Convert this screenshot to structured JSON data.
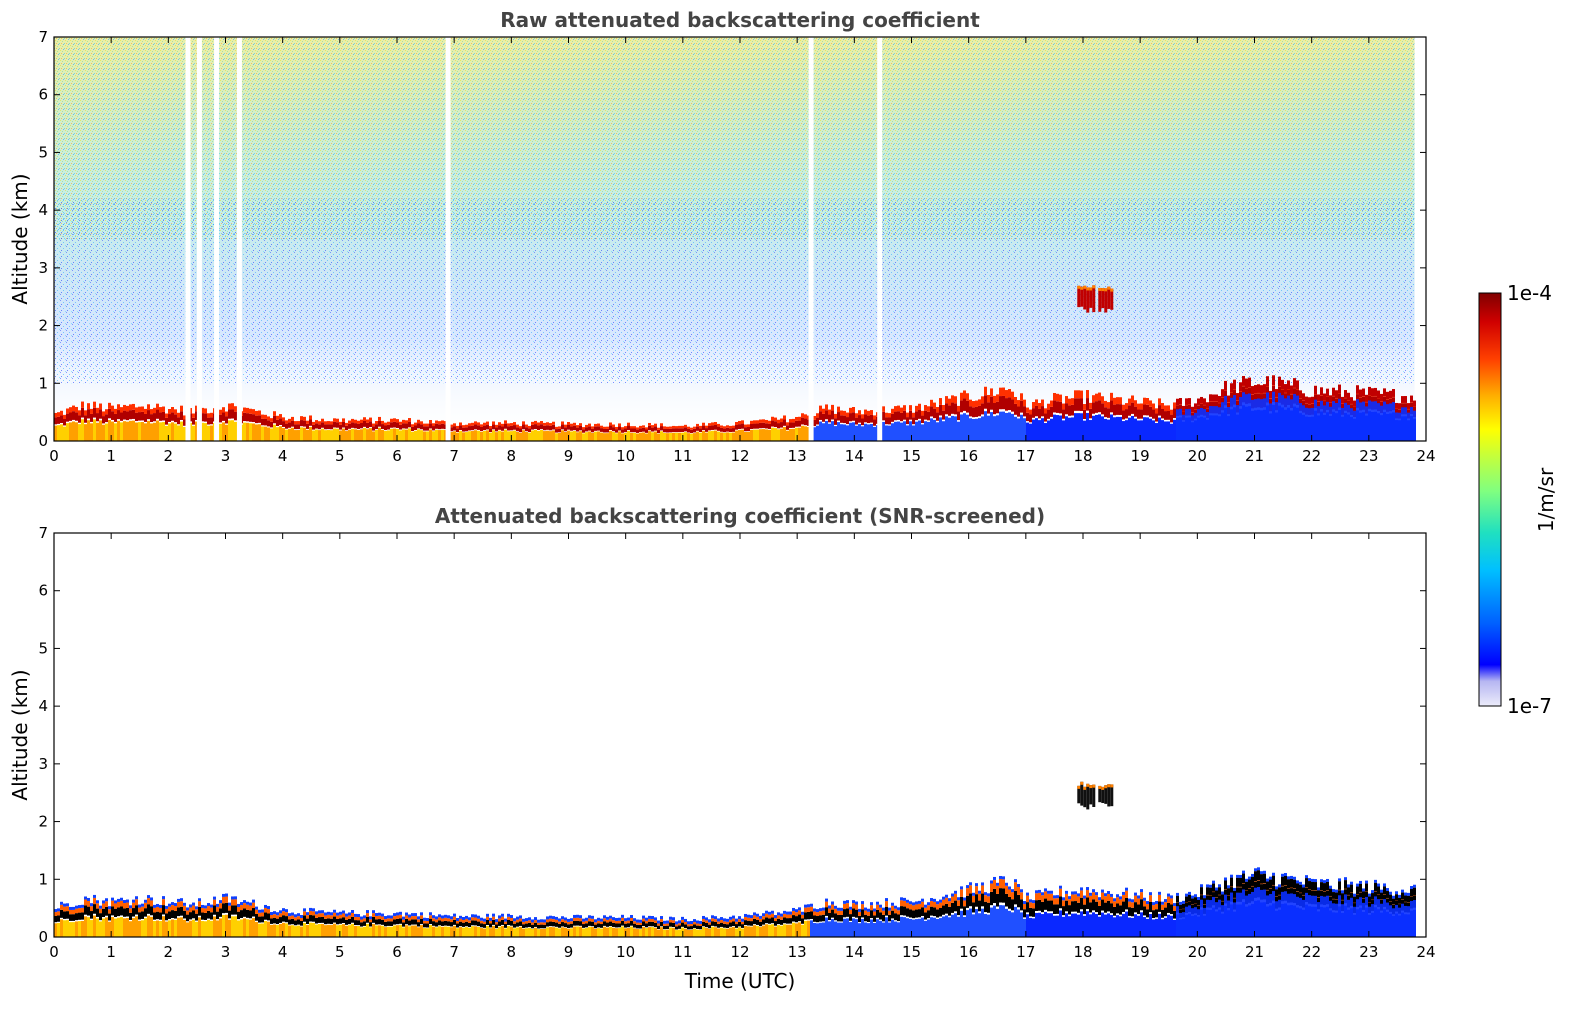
{
  "chart_data": [
    {
      "type": "heatmap",
      "panel": "top",
      "title": "Raw attenuated backscattering coefficient",
      "xlabel": "",
      "ylabel": "Altitude (km)",
      "xlim": [
        0,
        24
      ],
      "ylim": [
        0,
        7
      ],
      "xticks": [
        "0",
        "1",
        "2",
        "3",
        "4",
        "5",
        "6",
        "7",
        "8",
        "9",
        "10",
        "11",
        "12",
        "13",
        "14",
        "15",
        "16",
        "17",
        "18",
        "19",
        "20",
        "21",
        "22",
        "23",
        "24"
      ],
      "yticks": [
        "0",
        "1",
        "2",
        "3",
        "4",
        "5",
        "6",
        "7"
      ],
      "data_end_hour": 23.8,
      "layer_top_km": [
        [
          0,
          0.45
        ],
        [
          0.5,
          0.6
        ],
        [
          1,
          0.55
        ],
        [
          1.5,
          0.6
        ],
        [
          2,
          0.55
        ],
        [
          2.4,
          0.5
        ],
        [
          3,
          0.6
        ],
        [
          3.5,
          0.5
        ],
        [
          4,
          0.4
        ],
        [
          5,
          0.35
        ],
        [
          6,
          0.35
        ],
        [
          7,
          0.3
        ],
        [
          8,
          0.3
        ],
        [
          9,
          0.28
        ],
        [
          10,
          0.28
        ],
        [
          11,
          0.25
        ],
        [
          12,
          0.3
        ],
        [
          13,
          0.4
        ],
        [
          13.5,
          0.55
        ],
        [
          14,
          0.5
        ],
        [
          15,
          0.55
        ],
        [
          16,
          0.75
        ],
        [
          16.7,
          0.9
        ],
        [
          17,
          0.6
        ],
        [
          17.5,
          0.7
        ],
        [
          18,
          0.75
        ],
        [
          18.5,
          0.7
        ],
        [
          19,
          0.65
        ],
        [
          19.5,
          0.6
        ],
        [
          20,
          0.7
        ],
        [
          20.5,
          0.9
        ],
        [
          21,
          1.0
        ],
        [
          21.5,
          0.95
        ],
        [
          22,
          0.85
        ],
        [
          23,
          0.8
        ],
        [
          23.8,
          0.75
        ]
      ],
      "elevated_cloud": {
        "start_h": 17.9,
        "end_h": 18.5,
        "base_km": 2.2,
        "top_km": 2.7
      },
      "missing_data_hours": [
        2.3,
        2.5,
        2.8,
        3.2,
        6.85,
        13.2,
        14.4
      ]
    },
    {
      "type": "heatmap",
      "panel": "bottom",
      "title": "Attenuated backscattering coefficient (SNR-screened)",
      "xlabel": "Time (UTC)",
      "ylabel": "Altitude (km)",
      "xlim": [
        0,
        24
      ],
      "ylim": [
        0,
        7
      ],
      "xticks": [
        "0",
        "1",
        "2",
        "3",
        "4",
        "5",
        "6",
        "7",
        "8",
        "9",
        "10",
        "11",
        "12",
        "13",
        "14",
        "15",
        "16",
        "17",
        "18",
        "19",
        "20",
        "21",
        "22",
        "23",
        "24"
      ],
      "yticks": [
        "0",
        "1",
        "2",
        "3",
        "4",
        "5",
        "6",
        "7"
      ],
      "data_end_hour": 23.8,
      "screened_background": true
    }
  ],
  "colorbar": {
    "label": "1/m/sr",
    "max_label": "1e-4",
    "min_label": "1e-7",
    "max_value": 0.0001,
    "min_value": 1e-07,
    "colormap": [
      "#ececfa",
      "#b6b6f2",
      "#0000ff",
      "#0060ff",
      "#00c0ff",
      "#20e0c0",
      "#80ff80",
      "#c0ff40",
      "#ffff00",
      "#ffb000",
      "#ff4000",
      "#d00000",
      "#800000"
    ]
  },
  "colors": {
    "title": "#444444",
    "black_core": "#000000"
  }
}
